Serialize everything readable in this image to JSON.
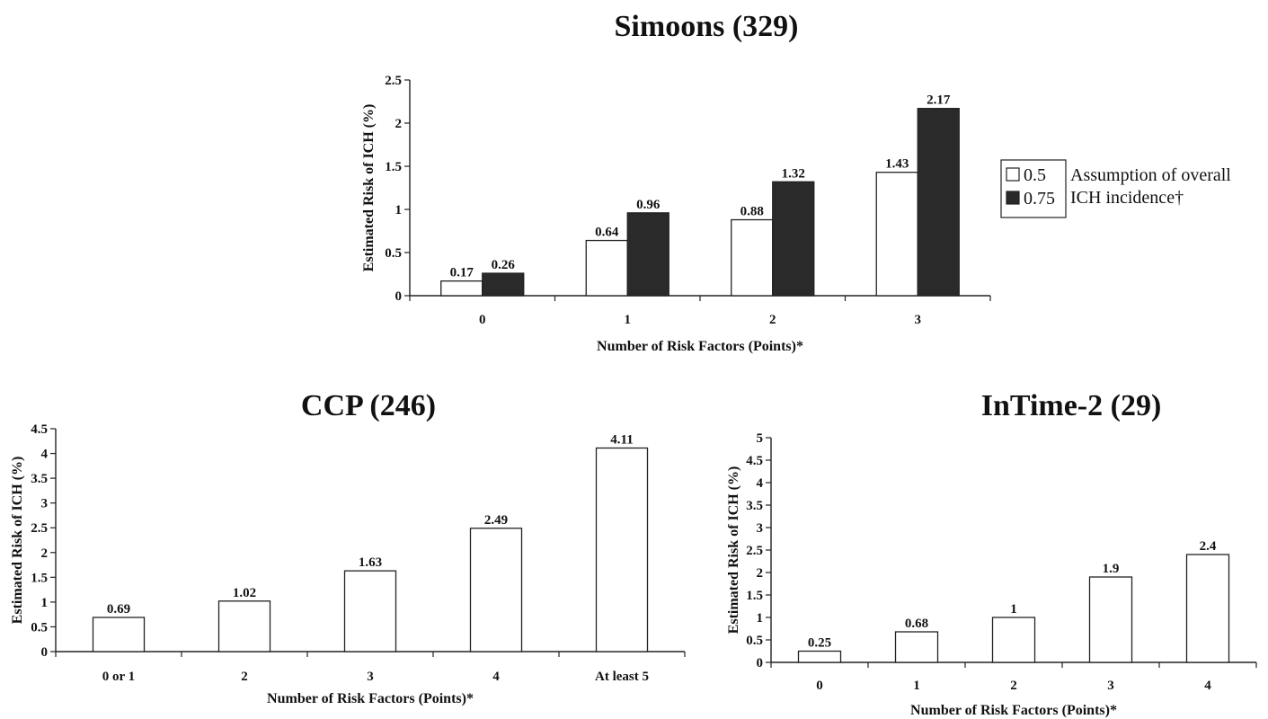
{
  "chart_data": [
    {
      "id": "simoons",
      "type": "bar",
      "title": "Simoons (329)",
      "xlabel": "Number of Risk Factors (Points)*",
      "ylabel": "Estimated Risk of ICH (%)",
      "ylim": [
        0,
        2.5
      ],
      "yticks": [
        "0",
        "0.5",
        "1",
        "1.5",
        "2",
        "2.5"
      ],
      "categories": [
        "0",
        "1",
        "2",
        "3"
      ],
      "series": [
        {
          "name": "0.5",
          "values": [
            0.17,
            0.64,
            0.88,
            1.43
          ],
          "labels": [
            "0.17",
            "0.64",
            "0.88",
            "1.43"
          ],
          "color": "#ffffff"
        },
        {
          "name": "0.75",
          "values": [
            0.26,
            0.96,
            1.32,
            2.17
          ],
          "labels": [
            "0.26",
            "0.96",
            "1.32",
            "2.17"
          ],
          "color": "#2a2a2a"
        }
      ],
      "legend": {
        "placement": "right",
        "title_lines": [
          "Assumption of overall",
          "ICH incidence†"
        ]
      }
    },
    {
      "id": "ccp",
      "type": "bar",
      "title": "CCP (246)",
      "xlabel": "Number of Risk Factors (Points)*",
      "ylabel": "Estimated Risk of ICH (%)",
      "ylim": [
        0,
        4.5
      ],
      "yticks": [
        "0",
        "0.5",
        "1",
        "1.5",
        "2",
        "2.5",
        "3",
        "3.5",
        "4",
        "4.5"
      ],
      "categories": [
        "0 or 1",
        "2",
        "3",
        "4",
        "At least 5"
      ],
      "series": [
        {
          "values": [
            0.69,
            1.02,
            1.63,
            2.49,
            4.11
          ],
          "labels": [
            "0.69",
            "1.02",
            "1.63",
            "2.49",
            "4.11"
          ],
          "color": "#ffffff"
        }
      ]
    },
    {
      "id": "intime2",
      "type": "bar",
      "title": "InTime-2 (29)",
      "xlabel": "Number of Risk Factors (Points)*",
      "ylabel": "Estimated Risk of ICH (%)",
      "ylim": [
        0,
        5
      ],
      "yticks": [
        "0",
        "0.5",
        "1",
        "1.5",
        "2",
        "2.5",
        "3",
        "3.5",
        "4",
        "4.5",
        "5"
      ],
      "categories": [
        "0",
        "1",
        "2",
        "3",
        "4"
      ],
      "series": [
        {
          "values": [
            0.25,
            0.68,
            1,
            1.9,
            2.4
          ],
          "labels": [
            "0.25",
            "0.68",
            "1",
            "1.9",
            "2.4"
          ],
          "color": "#ffffff"
        }
      ]
    }
  ]
}
